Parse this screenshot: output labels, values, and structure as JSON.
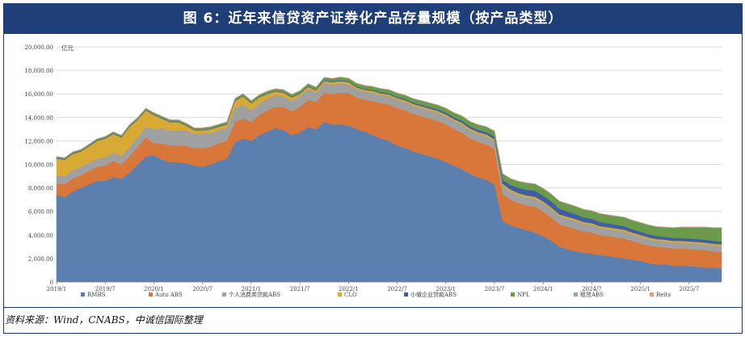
{
  "title": "图 6：近年来信贷资产证券化产品存量规模（按产品类型）",
  "source": "资料来源：Wind，CNABS，中诚信国际整理",
  "chart_data": {
    "type": "area",
    "stacked": true,
    "unit_label": "亿元",
    "ylim": [
      0,
      20000
    ],
    "yticks": [
      "0",
      "2,000.00",
      "4,000.00",
      "6,000.00",
      "8,000.00",
      "10,000.00",
      "12,000.00",
      "14,000.00",
      "16,000.00",
      "18,000.00",
      "20,000.00"
    ],
    "xticks": [
      "2019/1",
      "2019/7",
      "2020/1",
      "2020/7",
      "2021/1",
      "2021/7",
      "2022/1",
      "2022/7",
      "2023/1",
      "2023/7",
      "2024/1",
      "2024/7",
      "2025/1",
      "2025/7"
    ],
    "grid": true,
    "legend_position": "bottom",
    "x": [
      "2019/1",
      "2019/2",
      "2019/3",
      "2019/4",
      "2019/5",
      "2019/6",
      "2019/7",
      "2019/8",
      "2019/9",
      "2019/10",
      "2019/11",
      "2019/12",
      "2020/1",
      "2020/2",
      "2020/3",
      "2020/4",
      "2020/5",
      "2020/6",
      "2020/7",
      "2020/8",
      "2020/9",
      "2020/10",
      "2020/11",
      "2020/12",
      "2021/1",
      "2021/2",
      "2021/3",
      "2021/4",
      "2021/5",
      "2021/6",
      "2021/7",
      "2021/8",
      "2021/9",
      "2021/10",
      "2021/11",
      "2021/12",
      "2022/1",
      "2022/2",
      "2022/3",
      "2022/4",
      "2022/5",
      "2022/6",
      "2022/7",
      "2022/8",
      "2022/9",
      "2022/10",
      "2022/11",
      "2022/12",
      "2023/1",
      "2023/2",
      "2023/3",
      "2023/4",
      "2023/5",
      "2023/6",
      "2023/7",
      "2023/8",
      "2023/9",
      "2023/10",
      "2023/11",
      "2023/12",
      "2024/1",
      "2024/2",
      "2024/3",
      "2024/4",
      "2024/5",
      "2024/6",
      "2024/7",
      "2024/8",
      "2024/9",
      "2024/10",
      "2024/11",
      "2024/12",
      "2025/1",
      "2025/2",
      "2025/3",
      "2025/4",
      "2025/5",
      "2025/6",
      "2025/7",
      "2025/8",
      "2025/9",
      "2025/10",
      "2025/11"
    ],
    "series": [
      {
        "name": "RMBS",
        "color": "#5b80b0",
        "values": [
          7400,
          7200,
          7700,
          8000,
          8300,
          8600,
          8600,
          8900,
          8800,
          9300,
          10000,
          10700,
          10800,
          10400,
          10200,
          10200,
          10100,
          9900,
          9800,
          10000,
          10300,
          10500,
          11900,
          12200,
          12000,
          12500,
          12800,
          13100,
          12900,
          12500,
          12700,
          13200,
          13000,
          13600,
          13400,
          13400,
          13300,
          13000,
          12800,
          12500,
          12200,
          12000,
          11600,
          11400,
          11100,
          10900,
          10700,
          10500,
          10200,
          9900,
          9600,
          9200,
          8900,
          8700,
          8300,
          5200,
          4800,
          4600,
          4400,
          4200,
          3900,
          3500,
          3000,
          2800,
          2600,
          2500,
          2400,
          2300,
          2200,
          2100,
          2000,
          1900,
          1800,
          1600,
          1500,
          1500,
          1400,
          1400,
          1350,
          1300,
          1250,
          1200,
          1150
        ]
      },
      {
        "name": "Auto ABS",
        "color": "#d9773a",
        "values": [
          1000,
          1100,
          1100,
          1100,
          1150,
          1200,
          1300,
          1400,
          1200,
          1400,
          1500,
          1600,
          1000,
          1400,
          1400,
          1400,
          1500,
          1500,
          1600,
          1500,
          1500,
          1500,
          1700,
          1700,
          1600,
          1700,
          1800,
          1800,
          2000,
          2000,
          2200,
          2300,
          2300,
          2500,
          2600,
          2700,
          2800,
          2700,
          2700,
          2900,
          3000,
          3100,
          3200,
          3200,
          3200,
          3200,
          3200,
          3200,
          3200,
          3100,
          3100,
          3000,
          3000,
          3000,
          3000,
          2300,
          2200,
          2100,
          2100,
          2200,
          2100,
          2000,
          1900,
          1900,
          1900,
          1800,
          1800,
          1700,
          1700,
          1700,
          1700,
          1600,
          1500,
          1500,
          1500,
          1450,
          1450,
          1450,
          1450,
          1450,
          1450,
          1400,
          1400
        ]
      },
      {
        "name": "个人消费类贷款ABS",
        "color": "#a0a0a0",
        "values": [
          700,
          700,
          700,
          700,
          700,
          700,
          700,
          700,
          700,
          800,
          800,
          900,
          1200,
          1300,
          1300,
          1300,
          1300,
          1200,
          1200,
          1200,
          1100,
          1100,
          1200,
          1200,
          1000,
          1000,
          1000,
          1000,
          900,
          900,
          900,
          900,
          800,
          800,
          800,
          800,
          700,
          700,
          700,
          700,
          700,
          700,
          700,
          700,
          700,
          700,
          700,
          700,
          700,
          700,
          700,
          700,
          700,
          700,
          700,
          700,
          700,
          700,
          700,
          700,
          700,
          700,
          700,
          700,
          700,
          650,
          650,
          600,
          600,
          600,
          600,
          550,
          550,
          550,
          500,
          500,
          500,
          500,
          500,
          500,
          500,
          500,
          500
        ]
      },
      {
        "name": "CLO",
        "color": "#d8aa34",
        "values": [
          1400,
          1400,
          1400,
          1300,
          1400,
          1500,
          1600,
          1600,
          1600,
          1700,
          1500,
          1400,
          1200,
          800,
          700,
          700,
          400,
          300,
          300,
          300,
          300,
          300,
          600,
          700,
          600,
          500,
          400,
          300,
          300,
          300,
          200,
          200,
          200,
          200,
          200,
          200,
          200,
          150,
          150,
          150,
          150,
          150,
          150,
          150,
          150,
          150,
          150,
          150,
          150,
          150,
          150,
          150,
          150,
          150,
          150,
          150,
          150,
          150,
          150,
          150,
          150,
          150,
          150,
          150,
          150,
          150,
          150,
          150,
          150,
          150,
          150,
          150,
          150,
          150,
          150,
          150,
          150,
          150,
          150,
          150,
          150,
          150,
          150
        ]
      },
      {
        "name": "小微企业贷款ABS",
        "color": "#3e5fa8",
        "values": [
          50,
          50,
          50,
          50,
          50,
          50,
          50,
          50,
          50,
          50,
          50,
          50,
          50,
          50,
          50,
          50,
          50,
          50,
          50,
          50,
          50,
          50,
          50,
          50,
          50,
          50,
          50,
          50,
          60,
          60,
          60,
          60,
          60,
          70,
          70,
          70,
          70,
          80,
          80,
          80,
          90,
          90,
          100,
          100,
          100,
          120,
          120,
          130,
          150,
          150,
          170,
          180,
          190,
          200,
          220,
          350,
          400,
          450,
          500,
          500,
          500,
          500,
          480,
          450,
          420,
          400,
          380,
          360,
          340,
          320,
          300,
          290,
          280,
          270,
          260,
          250,
          250,
          250,
          250,
          250,
          250,
          250,
          250
        ]
      },
      {
        "name": "NPL",
        "color": "#6a9a4a",
        "values": [
          100,
          100,
          100,
          100,
          100,
          110,
          110,
          110,
          110,
          120,
          120,
          120,
          130,
          130,
          130,
          130,
          130,
          140,
          140,
          140,
          150,
          150,
          150,
          150,
          160,
          160,
          170,
          170,
          180,
          180,
          190,
          190,
          200,
          220,
          230,
          240,
          250,
          260,
          270,
          280,
          290,
          300,
          310,
          320,
          330,
          340,
          350,
          360,
          370,
          380,
          390,
          400,
          420,
          440,
          460,
          500,
          520,
          540,
          560,
          580,
          600,
          620,
          630,
          640,
          650,
          660,
          670,
          690,
          700,
          720,
          740,
          750,
          760,
          770,
          780,
          800,
          850,
          900,
          950,
          1000,
          1050,
          1100,
          1150
        ]
      },
      {
        "name": "租赁ABS",
        "color": "#8aa7c8",
        "values": [
          20,
          20,
          20,
          20,
          20,
          20,
          20,
          20,
          20,
          20,
          20,
          20,
          20,
          20,
          20,
          20,
          20,
          20,
          20,
          20,
          20,
          20,
          20,
          20,
          20,
          20,
          20,
          20,
          20,
          20,
          20,
          20,
          20,
          20,
          20,
          20,
          20,
          20,
          20,
          20,
          20,
          20,
          20,
          20,
          20,
          20,
          20,
          20,
          20,
          20,
          20,
          20,
          20,
          20,
          20,
          20,
          20,
          20,
          20,
          20,
          20,
          20,
          20,
          20,
          20,
          20,
          20,
          20,
          20,
          20,
          20,
          20,
          20,
          20,
          20,
          20,
          20,
          20,
          20,
          20,
          20,
          20,
          20
        ]
      },
      {
        "name": "Reits",
        "color": "#e79a86",
        "values": [
          10,
          10,
          10,
          10,
          10,
          10,
          10,
          10,
          10,
          10,
          10,
          10,
          10,
          10,
          10,
          10,
          10,
          10,
          10,
          10,
          10,
          10,
          10,
          10,
          10,
          10,
          10,
          10,
          10,
          10,
          10,
          10,
          10,
          10,
          10,
          10,
          10,
          10,
          10,
          10,
          10,
          10,
          10,
          10,
          10,
          10,
          10,
          10,
          10,
          10,
          10,
          10,
          10,
          10,
          10,
          10,
          10,
          10,
          10,
          10,
          10,
          10,
          10,
          10,
          10,
          10,
          10,
          10,
          10,
          10,
          10,
          10,
          10,
          10,
          10,
          10,
          10,
          10,
          10,
          10,
          10,
          10,
          10
        ]
      }
    ]
  }
}
